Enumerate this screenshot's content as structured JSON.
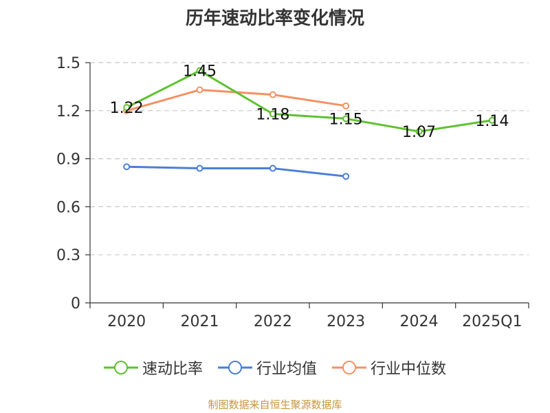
{
  "chart_data": {
    "type": "line",
    "title": "历年速动比率变化情况",
    "categories": [
      "2020",
      "2021",
      "2022",
      "2023",
      "2024",
      "2025Q1"
    ],
    "ylim": [
      0,
      1.5
    ],
    "yticks": [
      "0",
      "0.3",
      "0.6",
      "0.9",
      "1.2",
      "1.5"
    ],
    "grid": true,
    "legend_position": "bottom",
    "series": [
      {
        "name": "速动比率",
        "color": "#5cc22e",
        "values": [
          1.22,
          1.45,
          1.18,
          1.15,
          1.07,
          1.14
        ],
        "labels": [
          "1.22",
          "1.45",
          "1.18",
          "1.15",
          "1.07",
          "1.14"
        ]
      },
      {
        "name": "行业均值",
        "color": "#4a7fd6",
        "values": [
          0.85,
          0.84,
          0.84,
          0.79,
          null,
          null
        ]
      },
      {
        "name": "行业中位数",
        "color": "#f59162",
        "values": [
          1.2,
          1.33,
          1.3,
          1.23,
          null,
          null
        ]
      }
    ]
  },
  "source_text": "制图数据来自恒生聚源数据库"
}
